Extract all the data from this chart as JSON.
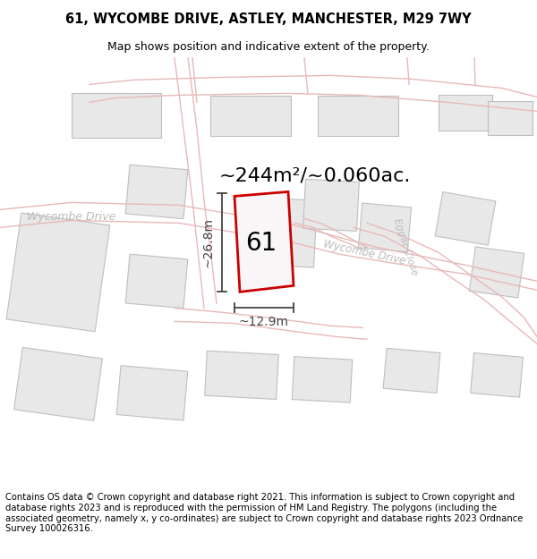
{
  "title_line1": "61, WYCOMBE DRIVE, ASTLEY, MANCHESTER, M29 7WY",
  "title_line2": "Map shows position and indicative extent of the property.",
  "footer_text": "Contains OS data © Crown copyright and database right 2021. This information is subject to Crown copyright and database rights 2023 and is reproduced with the permission of HM Land Registry. The polygons (including the associated geometry, namely x, y co-ordinates) are subject to Crown copyright and database rights 2023 Ordnance Survey 100026316.",
  "area_label": "~244m²/~0.060ac.",
  "width_label": "~12.9m",
  "height_label": "~26.8m",
  "plot_number": "61",
  "map_bg": "#ffffff",
  "building_fill": "#e8e8e8",
  "building_edge": "#c0bfbf",
  "road_line_color": "#e8b8b8",
  "plot_edge_color": "#cc0000",
  "plot_fill": "#f0eeee",
  "dim_color": "#444444",
  "street_label_color": "#bbbbbb",
  "title_fontsize": 10.5,
  "subtitle_fontsize": 9,
  "footer_fontsize": 7.2,
  "area_fontsize": 16
}
